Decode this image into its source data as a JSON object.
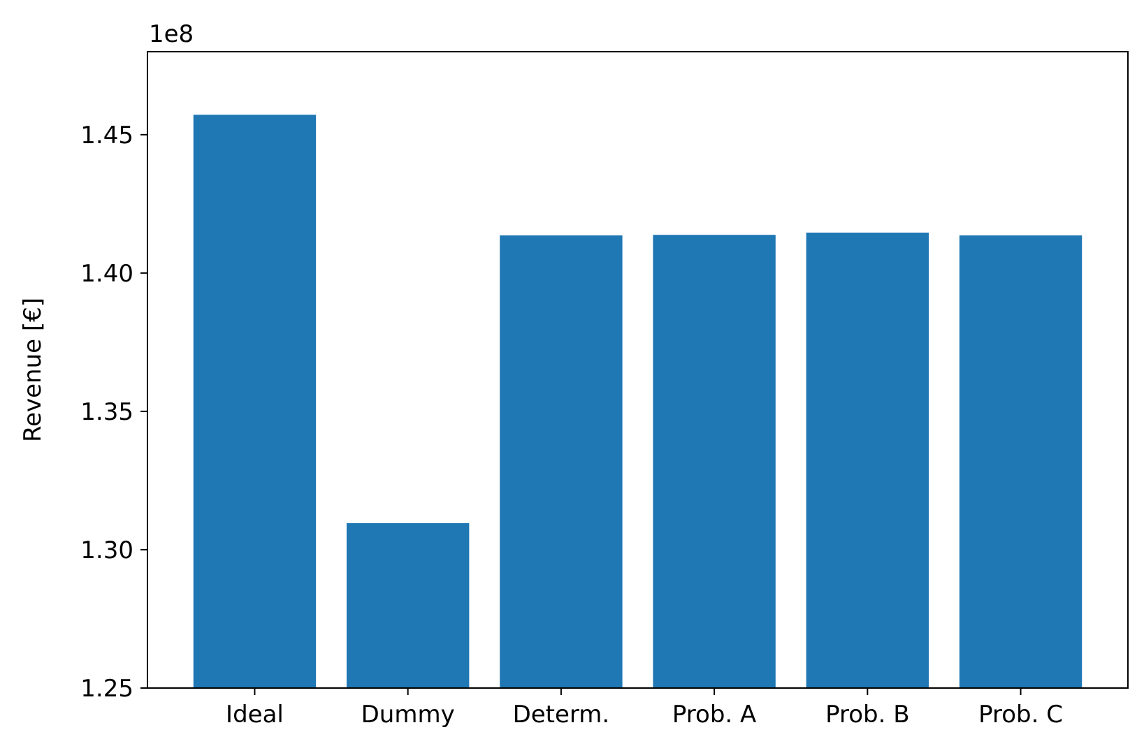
{
  "chart_data": {
    "type": "bar",
    "title": "",
    "xlabel": "",
    "ylabel": "Revenue [€]",
    "y_offset_label": "1e8",
    "categories": [
      "Ideal",
      "Dummy",
      "Determ.",
      "Prob. A",
      "Prob. B",
      "Prob. C"
    ],
    "values": [
      1.4572,
      1.3096,
      1.4136,
      1.4138,
      1.4146,
      1.4136
    ],
    "ylim": [
      1.25,
      1.48
    ],
    "yticks": [
      1.25,
      1.3,
      1.35,
      1.4,
      1.45
    ],
    "ytick_labels": [
      "1.25",
      "1.30",
      "1.35",
      "1.40",
      "1.45"
    ],
    "bar_color": "#1f77b4",
    "grid": false,
    "legend": "none"
  }
}
